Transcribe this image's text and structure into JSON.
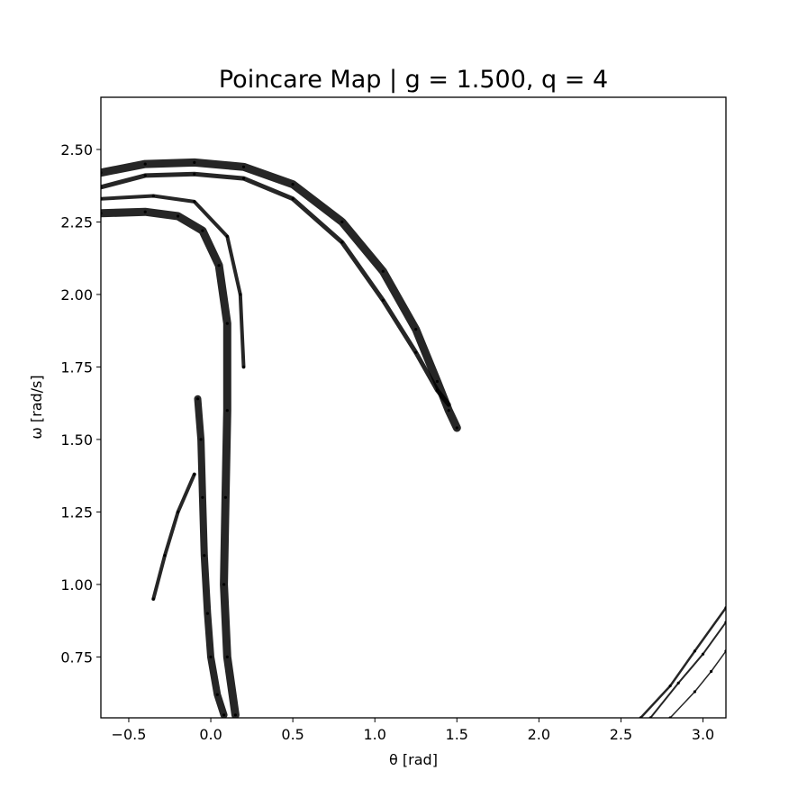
{
  "chart_data": {
    "type": "scatter",
    "title": "Poincare Map | g = 1.500, q = 4",
    "xlabel": "θ [rad]",
    "ylabel": "ω [rad/s]",
    "xlim": [
      -0.67,
      3.14
    ],
    "ylim": [
      0.54,
      2.68
    ],
    "x_ticks": [
      -0.5,
      0.0,
      0.5,
      1.0,
      1.5,
      2.0,
      2.5,
      3.0
    ],
    "x_tick_labels": [
      "−0.5",
      "0.0",
      "0.5",
      "1.0",
      "1.5",
      "2.0",
      "2.5",
      "3.0"
    ],
    "y_ticks": [
      0.75,
      1.0,
      1.25,
      1.5,
      1.75,
      2.0,
      2.25,
      2.5
    ],
    "y_tick_labels": [
      "0.75",
      "1.00",
      "1.25",
      "1.50",
      "1.75",
      "2.00",
      "2.25",
      "2.50"
    ],
    "grid": false,
    "marker_color": "#000000",
    "series": [
      {
        "values": [
          [
            -0.67,
            2.42
          ],
          [
            -0.4,
            2.45
          ],
          [
            -0.1,
            2.455
          ],
          [
            0.2,
            2.44
          ],
          [
            0.5,
            2.38
          ],
          [
            0.8,
            2.25
          ],
          [
            1.05,
            2.08
          ],
          [
            1.25,
            1.88
          ],
          [
            1.38,
            1.7
          ],
          [
            1.45,
            1.6
          ],
          [
            1.5,
            1.54
          ]
        ]
      },
      {
        "values": [
          [
            -0.67,
            2.37
          ],
          [
            -0.4,
            2.41
          ],
          [
            -0.1,
            2.415
          ],
          [
            0.2,
            2.4
          ],
          [
            0.5,
            2.33
          ],
          [
            0.8,
            2.18
          ],
          [
            1.05,
            1.98
          ],
          [
            1.25,
            1.8
          ],
          [
            1.38,
            1.67
          ],
          [
            1.45,
            1.62
          ]
        ]
      },
      {
        "values": [
          [
            -0.67,
            2.28
          ],
          [
            -0.4,
            2.285
          ],
          [
            -0.2,
            2.27
          ],
          [
            -0.05,
            2.22
          ],
          [
            0.05,
            2.1
          ],
          [
            0.1,
            1.9
          ],
          [
            0.1,
            1.6
          ],
          [
            0.09,
            1.3
          ],
          [
            0.08,
            1.0
          ],
          [
            0.1,
            0.75
          ],
          [
            0.15,
            0.55
          ]
        ]
      },
      {
        "values": [
          [
            -0.08,
            1.64
          ],
          [
            -0.06,
            1.5
          ],
          [
            -0.05,
            1.3
          ],
          [
            -0.04,
            1.1
          ],
          [
            -0.02,
            0.9
          ],
          [
            0.0,
            0.75
          ],
          [
            0.04,
            0.62
          ],
          [
            0.08,
            0.55
          ]
        ]
      },
      {
        "values": [
          [
            -0.35,
            0.95
          ],
          [
            -0.28,
            1.1
          ],
          [
            -0.2,
            1.25
          ],
          [
            -0.1,
            1.38
          ]
        ]
      },
      {
        "values": [
          [
            -0.67,
            2.33
          ],
          [
            -0.35,
            2.34
          ],
          [
            -0.1,
            2.32
          ],
          [
            0.1,
            2.2
          ],
          [
            0.18,
            2.0
          ],
          [
            0.2,
            1.75
          ]
        ]
      },
      {
        "values": [
          [
            2.62,
            0.54
          ],
          [
            2.8,
            0.65
          ],
          [
            2.95,
            0.77
          ],
          [
            3.14,
            0.92
          ]
        ]
      },
      {
        "values": [
          [
            2.68,
            0.54
          ],
          [
            2.85,
            0.66
          ],
          [
            3.0,
            0.76
          ],
          [
            3.14,
            0.87
          ]
        ]
      },
      {
        "values": [
          [
            2.8,
            0.54
          ],
          [
            2.95,
            0.63
          ],
          [
            3.05,
            0.7
          ],
          [
            3.14,
            0.77
          ]
        ]
      }
    ]
  }
}
